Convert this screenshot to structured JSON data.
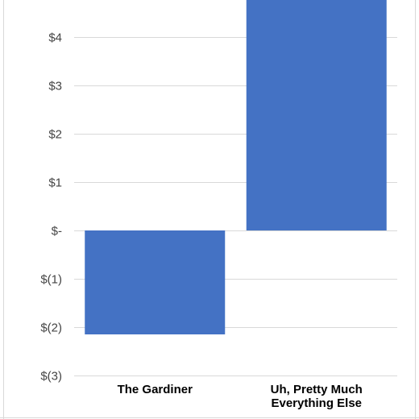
{
  "chart_data": {
    "type": "bar",
    "title": "",
    "xlabel": "",
    "ylabel": "",
    "categories": [
      [
        "The Gardiner"
      ],
      [
        "Uh, Pretty Much",
        "Everything Else"
      ]
    ],
    "values": [
      -2.15,
      4.9
    ],
    "ylim": [
      -3,
      4.8
    ],
    "ticks": [
      {
        "value": 4,
        "label": "$4"
      },
      {
        "value": 3,
        "label": "$3"
      },
      {
        "value": 2,
        "label": "$2"
      },
      {
        "value": 1,
        "label": "$1"
      },
      {
        "value": 0,
        "label": "$-"
      },
      {
        "value": -1,
        "label": "$(1)"
      },
      {
        "value": -2,
        "label": "$(2)"
      },
      {
        "value": -3,
        "label": "$(3)"
      }
    ],
    "grid": true,
    "legend": "none",
    "colors": {
      "bar": "#4472C4",
      "grid": "#d9d9d9",
      "border": "#cfcfcf"
    }
  }
}
